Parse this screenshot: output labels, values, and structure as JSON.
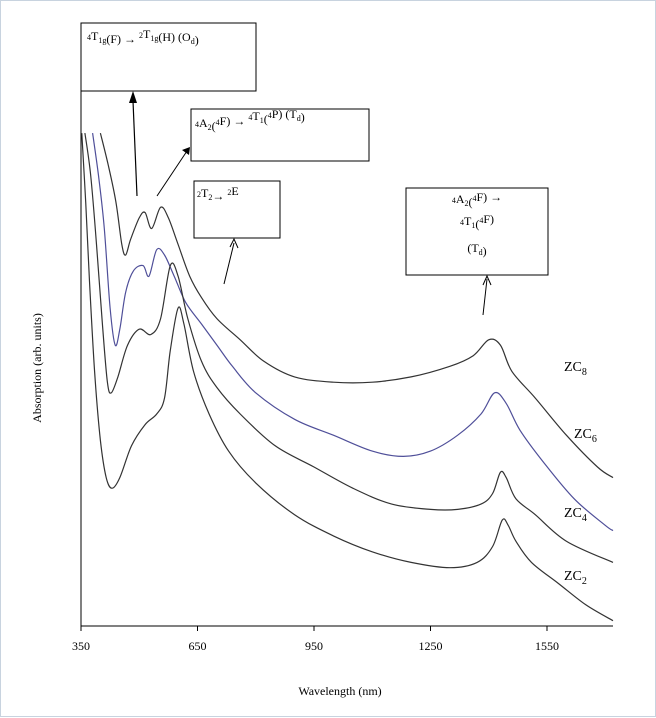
{
  "chart_data": {
    "type": "line",
    "xlabel": "Wavelength  (nm)",
    "ylabel": "Absorption  (arb. units)",
    "xlim": [
      350,
      1720
    ],
    "ylim": [
      0,
      100
    ],
    "x_ticks": [
      350,
      650,
      950,
      1250,
      1550
    ],
    "x_tick_labels": [
      "350",
      "650",
      "950",
      "1250",
      "1550"
    ],
    "grid": false,
    "series": [
      {
        "name": "ZC8",
        "color": "#333333",
        "points": [
          [
            400,
            93
          ],
          [
            420,
            87
          ],
          [
            440,
            80
          ],
          [
            455,
            72
          ],
          [
            465,
            70
          ],
          [
            478,
            73
          ],
          [
            500,
            77
          ],
          [
            515,
            78
          ],
          [
            532,
            75
          ],
          [
            555,
            79
          ],
          [
            575,
            77
          ],
          [
            600,
            72
          ],
          [
            630,
            66
          ],
          [
            660,
            62
          ],
          [
            700,
            58
          ],
          [
            760,
            54
          ],
          [
            820,
            50
          ],
          [
            900,
            47
          ],
          [
            1000,
            46
          ],
          [
            1100,
            46
          ],
          [
            1200,
            47
          ],
          [
            1300,
            49
          ],
          [
            1360,
            51
          ],
          [
            1400,
            54
          ],
          [
            1430,
            53
          ],
          [
            1460,
            48
          ],
          [
            1520,
            43
          ],
          [
            1600,
            36
          ],
          [
            1680,
            30
          ],
          [
            1720,
            28
          ]
        ]
      },
      {
        "name": "ZC6",
        "color": "#4f4f99",
        "points": [
          [
            380,
            93
          ],
          [
            395,
            85
          ],
          [
            410,
            75
          ],
          [
            425,
            60
          ],
          [
            438,
            53
          ],
          [
            450,
            56
          ],
          [
            465,
            63
          ],
          [
            485,
            67
          ],
          [
            510,
            68
          ],
          [
            525,
            66
          ],
          [
            545,
            71
          ],
          [
            565,
            70
          ],
          [
            590,
            66
          ],
          [
            620,
            61
          ],
          [
            660,
            57
          ],
          [
            700,
            53
          ],
          [
            740,
            49
          ],
          [
            800,
            44
          ],
          [
            900,
            39
          ],
          [
            1000,
            36
          ],
          [
            1100,
            33
          ],
          [
            1180,
            32
          ],
          [
            1250,
            33
          ],
          [
            1320,
            36
          ],
          [
            1380,
            40
          ],
          [
            1415,
            44
          ],
          [
            1445,
            42
          ],
          [
            1480,
            37
          ],
          [
            1540,
            31
          ],
          [
            1620,
            24
          ],
          [
            1700,
            19
          ],
          [
            1720,
            18
          ]
        ]
      },
      {
        "name": "ZC4",
        "color": "#333333",
        "points": [
          [
            360,
            93
          ],
          [
            375,
            85
          ],
          [
            390,
            72
          ],
          [
            405,
            57
          ],
          [
            418,
            46
          ],
          [
            428,
            44
          ],
          [
            445,
            47
          ],
          [
            470,
            53
          ],
          [
            500,
            56
          ],
          [
            530,
            55
          ],
          [
            555,
            58
          ],
          [
            580,
            68
          ],
          [
            600,
            66
          ],
          [
            625,
            58
          ],
          [
            660,
            50
          ],
          [
            700,
            45
          ],
          [
            760,
            40
          ],
          [
            850,
            34
          ],
          [
            950,
            30
          ],
          [
            1050,
            26
          ],
          [
            1150,
            23
          ],
          [
            1250,
            22
          ],
          [
            1320,
            22
          ],
          [
            1380,
            23
          ],
          [
            1410,
            25
          ],
          [
            1430,
            29
          ],
          [
            1445,
            28
          ],
          [
            1470,
            24
          ],
          [
            1520,
            21
          ],
          [
            1600,
            16
          ],
          [
            1720,
            12
          ]
        ]
      },
      {
        "name": "ZC2",
        "color": "#333333",
        "points": [
          [
            352,
            93
          ],
          [
            362,
            80
          ],
          [
            372,
            65
          ],
          [
            385,
            48
          ],
          [
            400,
            35
          ],
          [
            415,
            28
          ],
          [
            430,
            26
          ],
          [
            450,
            28
          ],
          [
            480,
            34
          ],
          [
            515,
            38
          ],
          [
            545,
            40
          ],
          [
            565,
            43
          ],
          [
            580,
            52
          ],
          [
            600,
            60
          ],
          [
            615,
            57
          ],
          [
            640,
            48
          ],
          [
            680,
            40
          ],
          [
            730,
            33
          ],
          [
            800,
            27
          ],
          [
            900,
            21
          ],
          [
            1000,
            17
          ],
          [
            1100,
            14
          ],
          [
            1200,
            12
          ],
          [
            1300,
            11
          ],
          [
            1370,
            12
          ],
          [
            1410,
            15
          ],
          [
            1435,
            20
          ],
          [
            1450,
            19
          ],
          [
            1470,
            16
          ],
          [
            1510,
            12
          ],
          [
            1580,
            8
          ],
          [
            1650,
            4
          ],
          [
            1720,
            1
          ]
        ]
      }
    ],
    "series_labels": [
      {
        "base": "ZC",
        "sub": "8",
        "series": "ZC8"
      },
      {
        "base": "ZC",
        "sub": "6",
        "series": "ZC6"
      },
      {
        "base": "ZC",
        "sub": "4",
        "series": "ZC4"
      },
      {
        "base": "ZC",
        "sub": "2",
        "series": "ZC2"
      }
    ],
    "annotations": [
      {
        "id": "oh",
        "parts": [
          [
            "sup",
            "4"
          ],
          [
            "n",
            "T"
          ],
          [
            "sub",
            "1g"
          ],
          [
            "n",
            "(F) → "
          ],
          [
            "sup",
            "2"
          ],
          [
            "n",
            "T"
          ],
          [
            "sub",
            "1g"
          ],
          [
            "n",
            "(H) (O"
          ],
          [
            "sub",
            "d"
          ],
          [
            "n",
            ")"
          ]
        ]
      },
      {
        "id": "td1",
        "parts": [
          [
            "sup",
            "4"
          ],
          [
            "n",
            "A"
          ],
          [
            "sub",
            "2"
          ],
          [
            "n",
            "("
          ],
          [
            "sup",
            "4"
          ],
          [
            "n",
            "F) → "
          ],
          [
            "sup",
            "4"
          ],
          [
            "n",
            "T"
          ],
          [
            "sub",
            "1"
          ],
          [
            "n",
            "("
          ],
          [
            "sup",
            "4"
          ],
          [
            "n",
            "P) (T"
          ],
          [
            "sub",
            "d"
          ],
          [
            "n",
            ")"
          ]
        ]
      },
      {
        "id": "e",
        "parts": [
          [
            "sup",
            "2"
          ],
          [
            "n",
            "T"
          ],
          [
            "sub",
            "2"
          ],
          [
            "n",
            "→ "
          ],
          [
            "sup",
            "2"
          ],
          [
            "n",
            "E"
          ]
        ]
      },
      {
        "id": "td2a",
        "parts": [
          [
            "sup",
            "4"
          ],
          [
            "n",
            "A"
          ],
          [
            "sub",
            "2"
          ],
          [
            "n",
            "("
          ],
          [
            "sup",
            "4"
          ],
          [
            "n",
            "F) →"
          ]
        ]
      },
      {
        "id": "td2b",
        "parts": [
          [
            "sup",
            "4"
          ],
          [
            "n",
            "T"
          ],
          [
            "sub",
            "1"
          ],
          [
            "n",
            "("
          ],
          [
            "sup",
            "4"
          ],
          [
            "n",
            "F)"
          ]
        ]
      },
      {
        "id": "td2c",
        "parts": [
          [
            "n",
            "(T"
          ],
          [
            "sub",
            "d"
          ],
          [
            "n",
            ")"
          ]
        ]
      }
    ]
  }
}
